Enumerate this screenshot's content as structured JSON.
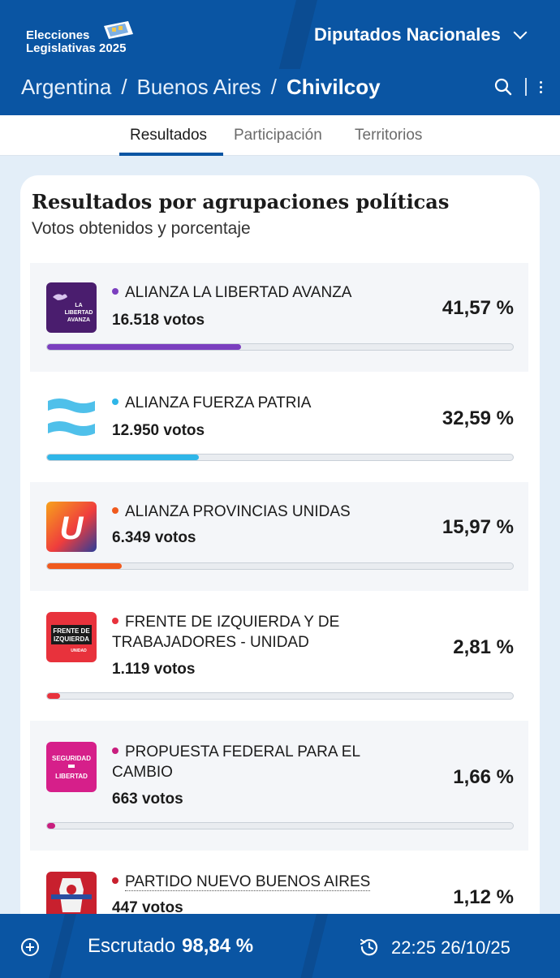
{
  "header": {
    "logo_line1": "Elecciones",
    "logo_line2": "Legislativas 2025",
    "category": "Diputados Nacionales",
    "breadcrumb": [
      "Argentina",
      "Buenos Aires",
      "Chivilcoy"
    ],
    "separator": "/"
  },
  "tabs": [
    {
      "label": "Resultados",
      "active": true
    },
    {
      "label": "Participación",
      "active": false
    },
    {
      "label": "Territorios",
      "active": false
    }
  ],
  "card": {
    "title": "Resultados por agrupaciones políticas",
    "subtitle": "Votos obtenidos y porcentaje"
  },
  "parties": [
    {
      "name": "ALIANZA LA LIBERTAD AVANZA",
      "votes": "16.518 votos",
      "percent_label": "41,57 %",
      "percent": 41.57,
      "color": "#7b3fbf",
      "logo": "libertad-avanza-logo",
      "logo_text": [
        "LA",
        "LIBERTAD",
        "AVANZA"
      ]
    },
    {
      "name": "ALIANZA FUERZA PATRIA",
      "votes": "12.950 votos",
      "percent_label": "32,59 %",
      "percent": 32.59,
      "color": "#2fb6e8",
      "logo": "fuerza-patria-logo"
    },
    {
      "name": "ALIANZA PROVINCIAS UNIDAS",
      "votes": "6.349 votos",
      "percent_label": "15,97 %",
      "percent": 15.97,
      "color": "#f05a1e",
      "logo": "provincias-unidas-logo",
      "logo_text": [
        "U"
      ]
    },
    {
      "name": "FRENTE DE IZQUIERDA Y DE TRABAJADORES - UNIDAD",
      "votes": "1.119 votos",
      "percent_label": "2,81 %",
      "percent": 2.81,
      "color": "#e8323c",
      "logo": "frente-izquierda-logo",
      "logo_text": [
        "FRENTE DE",
        "IZQUIERDA",
        "UNIDAD"
      ]
    },
    {
      "name": "PROPUESTA FEDERAL PARA EL CAMBIO",
      "votes": "663 votos",
      "percent_label": "1,66 %",
      "percent": 1.66,
      "color": "#c81e7e",
      "logo": "seguridad-libertad-logo",
      "logo_text": [
        "SEGURIDAD",
        "LIBERTAD"
      ]
    },
    {
      "name": "PARTIDO NUEVO BUENOS AIRES",
      "votes": "447 votos",
      "percent_label": "1,12 %",
      "percent": 1.12,
      "color": "#c8202e",
      "logo": "nuevo-buenos-aires-logo"
    }
  ],
  "footer": {
    "scrutinized_label": "Escrutado",
    "scrutinized_value": "98,84 %",
    "datetime": "22:25 26/10/25"
  }
}
